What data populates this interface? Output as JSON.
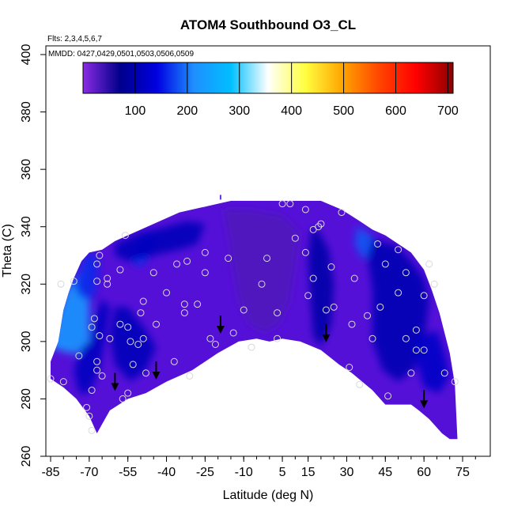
{
  "chart_data": {
    "type": "heatmap",
    "title": "ATOM4 Southbound O3_CL",
    "subtitle_flights": "Flts: 2,3,4,5,6,7",
    "subtitle_dates": "MMDD: 0427,0429,0501,0503,0506,0509",
    "xlabel": "Latitude (deg N)",
    "ylabel": "Theta (C)",
    "xlim": [
      -87,
      80
    ],
    "ylim": [
      260,
      402
    ],
    "x_ticks": [
      -85,
      -70,
      -55,
      -40,
      -25,
      -10,
      5,
      15,
      30,
      45,
      60,
      75
    ],
    "y_ticks": [
      260,
      280,
      300,
      320,
      340,
      360,
      380,
      400
    ],
    "colorbar": {
      "range": [
        0,
        710
      ],
      "ticks": [
        100,
        200,
        300,
        400,
        500,
        600,
        700
      ],
      "colors": [
        "#8a2be2",
        "#00008b",
        "#0000e0",
        "#1e90ff",
        "#00bfff",
        "#ffffff",
        "#ffff40",
        "#ffa500",
        "#ff4500",
        "#ff0000",
        "#8b0000"
      ]
    },
    "field": {
      "background_color": "#5510d8",
      "upper_boundary": [
        [
          -85,
          293
        ],
        [
          -82,
          300
        ],
        [
          -80,
          311
        ],
        [
          -78,
          317
        ],
        [
          -76,
          322
        ],
        [
          -73,
          328
        ],
        [
          -70,
          331
        ],
        [
          -65,
          332
        ],
        [
          -60,
          335
        ],
        [
          -55,
          337
        ],
        [
          -50,
          339
        ],
        [
          -45,
          341
        ],
        [
          -40,
          343
        ],
        [
          -35,
          345
        ],
        [
          -25,
          347
        ],
        [
          -20,
          348
        ],
        [
          -15,
          349
        ],
        [
          0,
          349
        ],
        [
          10,
          349
        ],
        [
          20,
          349
        ],
        [
          28,
          346
        ],
        [
          35,
          342
        ],
        [
          40,
          339
        ],
        [
          45,
          337
        ],
        [
          50,
          334
        ],
        [
          55,
          331
        ],
        [
          60,
          325
        ],
        [
          63,
          318
        ],
        [
          66,
          310
        ],
        [
          68,
          303
        ],
        [
          70,
          296
        ],
        [
          72,
          285
        ],
        [
          73,
          266
        ]
      ],
      "lower_boundary": [
        [
          -85,
          287
        ],
        [
          -80,
          284
        ],
        [
          -75,
          280
        ],
        [
          -70,
          274
        ],
        [
          -67,
          268
        ],
        [
          -62,
          276
        ],
        [
          -55,
          280
        ],
        [
          -48,
          282
        ],
        [
          -40,
          286
        ],
        [
          -30,
          290
        ],
        [
          -20,
          296
        ],
        [
          -12,
          300
        ],
        [
          -5,
          301
        ],
        [
          0,
          300
        ],
        [
          5,
          301
        ],
        [
          12,
          300
        ],
        [
          20,
          297
        ],
        [
          27,
          292
        ],
        [
          32,
          289
        ],
        [
          36,
          286
        ],
        [
          40,
          283
        ],
        [
          45,
          278
        ],
        [
          50,
          278
        ],
        [
          55,
          278
        ],
        [
          58,
          276
        ],
        [
          62,
          273
        ],
        [
          67,
          268
        ],
        [
          70,
          266
        ],
        [
          73,
          266
        ]
      ],
      "features": [
        {
          "name": "light-blue-plume",
          "value": 225,
          "polygon": [
            [
              -85,
              300
            ],
            [
              -82,
              310
            ],
            [
              -79,
              318
            ],
            [
              -74,
              324
            ],
            [
              -72,
              328
            ],
            [
              -70,
              330
            ],
            [
              -70,
              300
            ],
            [
              -73,
              296
            ],
            [
              -78,
              296
            ],
            [
              -85,
              298
            ]
          ]
        },
        {
          "name": "upper-left-blue",
          "value": 160,
          "polygon": [
            [
              -72,
              330
            ],
            [
              -68,
              331
            ],
            [
              -66,
              328
            ],
            [
              -67,
              318
            ],
            [
              -70,
              314
            ],
            [
              -74,
              316
            ],
            [
              -76,
              320
            ],
            [
              -73,
              326
            ]
          ]
        },
        {
          "name": "left-mid-navy",
          "value": 115,
          "polygon": [
            [
              -70,
              300
            ],
            [
              -68,
              308
            ],
            [
              -65,
              315
            ],
            [
              -62,
              312
            ],
            [
              -64,
              300
            ],
            [
              -66,
              290
            ],
            [
              -70,
              282
            ],
            [
              -74,
              282
            ],
            [
              -76,
              290
            ],
            [
              -73,
              298
            ]
          ]
        },
        {
          "name": "ridge-blue",
          "value": 165,
          "polygon": [
            [
              -52,
              332
            ],
            [
              -48,
              338
            ],
            [
              -44,
              336
            ],
            [
              -46,
              330
            ],
            [
              -50,
              326
            ],
            [
              -54,
              328
            ]
          ]
        },
        {
          "name": "upper-mid-navy",
          "value": 110,
          "polygon": [
            [
              -60,
              334
            ],
            [
              -50,
              338
            ],
            [
              -40,
              340
            ],
            [
              -32,
              342
            ],
            [
              -25,
              341
            ],
            [
              -28,
              334
            ],
            [
              -35,
              332
            ],
            [
              -45,
              330
            ],
            [
              -55,
              328
            ],
            [
              -60,
              330
            ]
          ]
        },
        {
          "name": "center-light-violet",
          "value": 30,
          "polygon": [
            [
              -18,
              346
            ],
            [
              -8,
              346
            ],
            [
              5,
              344
            ],
            [
              12,
              338
            ],
            [
              10,
              326
            ],
            [
              8,
              314
            ],
            [
              4,
              306
            ],
            [
              -2,
              303
            ],
            [
              -8,
              306
            ],
            [
              -12,
              314
            ],
            [
              -14,
              324
            ],
            [
              -16,
              336
            ]
          ]
        },
        {
          "name": "center-right-navy",
          "value": 95,
          "polygon": [
            [
              18,
              340
            ],
            [
              23,
              332
            ],
            [
              25,
              320
            ],
            [
              24,
              306
            ],
            [
              20,
              298
            ],
            [
              17,
              302
            ],
            [
              16,
              314
            ],
            [
              15,
              328
            ],
            [
              16,
              338
            ]
          ]
        },
        {
          "name": "right-upper-blue",
          "value": 185,
          "polygon": [
            [
              34,
              340
            ],
            [
              38,
              338
            ],
            [
              41,
              335
            ],
            [
              40,
              330
            ],
            [
              36,
              329
            ],
            [
              33,
              334
            ]
          ]
        },
        {
          "name": "right-navy",
          "value": 105,
          "polygon": [
            [
              40,
              336
            ],
            [
              50,
              333
            ],
            [
              55,
              328
            ],
            [
              60,
              322
            ],
            [
              62,
              314
            ],
            [
              60,
              300
            ],
            [
              56,
              290
            ],
            [
              50,
              286
            ],
            [
              44,
              290
            ],
            [
              40,
              300
            ],
            [
              40,
              318
            ],
            [
              38,
              330
            ]
          ]
        },
        {
          "name": "right-lower-navy",
          "value": 120,
          "polygon": [
            [
              55,
              300
            ],
            [
              60,
              302
            ],
            [
              65,
              304
            ],
            [
              68,
              296
            ],
            [
              70,
              288
            ],
            [
              66,
              282
            ],
            [
              60,
              284
            ]
          ]
        },
        {
          "name": "left-lower-navy",
          "value": 110,
          "polygon": [
            [
              -60,
              312
            ],
            [
              -55,
              312
            ],
            [
              -48,
              304
            ],
            [
              -44,
              298
            ],
            [
              -48,
              290
            ],
            [
              -54,
              286
            ],
            [
              -60,
              292
            ],
            [
              -62,
              302
            ]
          ]
        }
      ]
    },
    "obs_points": [
      [
        -85,
        287
      ],
      [
        -81,
        320
      ],
      [
        -80,
        286
      ],
      [
        -76,
        321
      ],
      [
        -74,
        295
      ],
      [
        -70,
        274
      ],
      [
        -69,
        283
      ],
      [
        -69,
        269
      ],
      [
        -71,
        277
      ],
      [
        -69,
        305
      ],
      [
        -68,
        308
      ],
      [
        -67,
        321
      ],
      [
        -67,
        327
      ],
      [
        -66,
        330
      ],
      [
        -66,
        302
      ],
      [
        -67,
        293
      ],
      [
        -67,
        290
      ],
      [
        -65,
        288
      ],
      [
        -63,
        322
      ],
      [
        -62,
        301
      ],
      [
        -63,
        320
      ],
      [
        -58,
        306
      ],
      [
        -58,
        325
      ],
      [
        -57,
        280
      ],
      [
        -56,
        337
      ],
      [
        -55,
        282
      ],
      [
        -55,
        305
      ],
      [
        -54,
        300
      ],
      [
        -53,
        292
      ],
      [
        -51,
        299
      ],
      [
        -50,
        310
      ],
      [
        -49,
        301
      ],
      [
        -49,
        314
      ],
      [
        -48,
        289
      ],
      [
        -45,
        324
      ],
      [
        -44,
        306
      ],
      [
        -40,
        317
      ],
      [
        -37,
        293
      ],
      [
        -36,
        327
      ],
      [
        -33,
        313
      ],
      [
        -33,
        310
      ],
      [
        -32,
        328
      ],
      [
        -31,
        288
      ],
      [
        -28,
        313
      ],
      [
        -25,
        331
      ],
      [
        -25,
        324
      ],
      [
        -23,
        301
      ],
      [
        -21,
        299
      ],
      [
        -16,
        329
      ],
      [
        -14,
        303
      ],
      [
        -10,
        311
      ],
      [
        -7,
        298
      ],
      [
        -3,
        320
      ],
      [
        -1,
        329
      ],
      [
        3,
        301
      ],
      [
        3,
        310
      ],
      [
        8,
        348
      ],
      [
        5,
        348
      ],
      [
        10,
        336
      ],
      [
        14,
        331
      ],
      [
        14,
        346
      ],
      [
        17,
        339
      ],
      [
        19,
        340
      ],
      [
        20,
        341
      ],
      [
        15,
        316
      ],
      [
        22,
        311
      ],
      [
        17,
        322
      ],
      [
        24,
        326
      ],
      [
        25,
        312
      ],
      [
        28,
        345
      ],
      [
        31,
        291
      ],
      [
        32,
        306
      ],
      [
        33,
        322
      ],
      [
        35,
        285
      ],
      [
        38,
        309
      ],
      [
        40,
        301
      ],
      [
        42,
        334
      ],
      [
        43,
        312
      ],
      [
        46,
        281
      ],
      [
        45,
        327
      ],
      [
        50,
        317
      ],
      [
        50,
        332
      ],
      [
        53,
        324
      ],
      [
        53,
        301
      ],
      [
        55,
        289
      ],
      [
        57,
        297
      ],
      [
        57,
        304
      ],
      [
        60,
        297
      ],
      [
        60,
        316
      ],
      [
        62,
        327
      ],
      [
        64,
        320
      ],
      [
        68,
        289
      ],
      [
        72,
        286
      ]
    ],
    "arrows": [
      [
        -60,
        283
      ],
      [
        -44,
        287
      ],
      [
        -19,
        303
      ],
      [
        22,
        300
      ],
      [
        60,
        277
      ]
    ],
    "top_marker": [
      -19,
      350
    ]
  }
}
